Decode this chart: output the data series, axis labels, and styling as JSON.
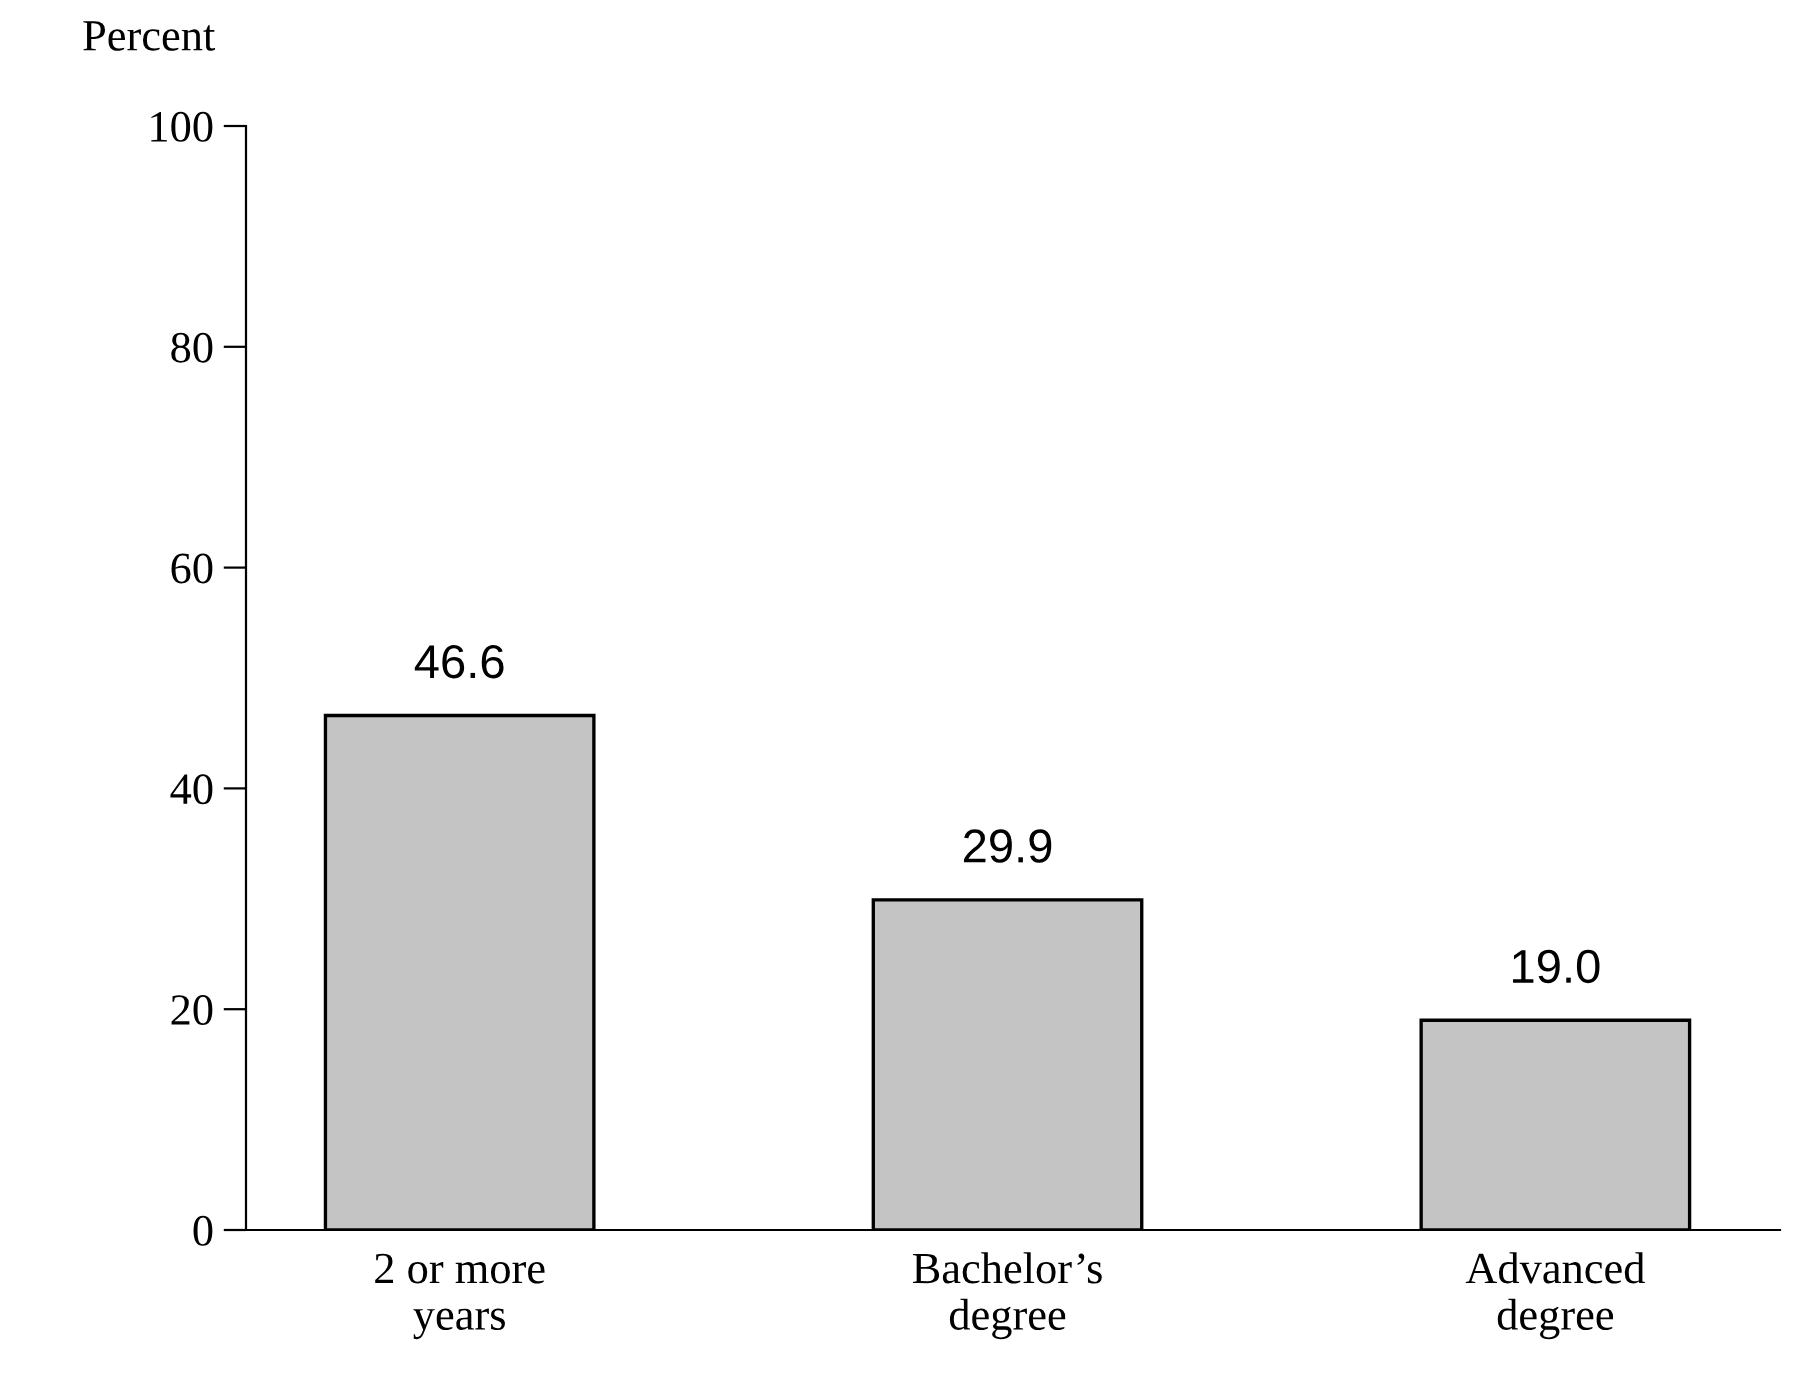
{
  "chart_data": {
    "type": "bar",
    "ylabel": "Percent",
    "categories": [
      "2 or more\nyears",
      "Bachelor’s\ndegree",
      "Advanced\ndegree"
    ],
    "values": [
      46.6,
      29.9,
      19.0
    ],
    "value_labels": [
      "46.6",
      "29.9",
      "19.0"
    ],
    "color": "#c4c4c4",
    "ylim": [
      0,
      100
    ],
    "yticks": [
      0,
      20,
      40,
      60,
      80,
      100
    ],
    "grid": false,
    "legend": false
  }
}
